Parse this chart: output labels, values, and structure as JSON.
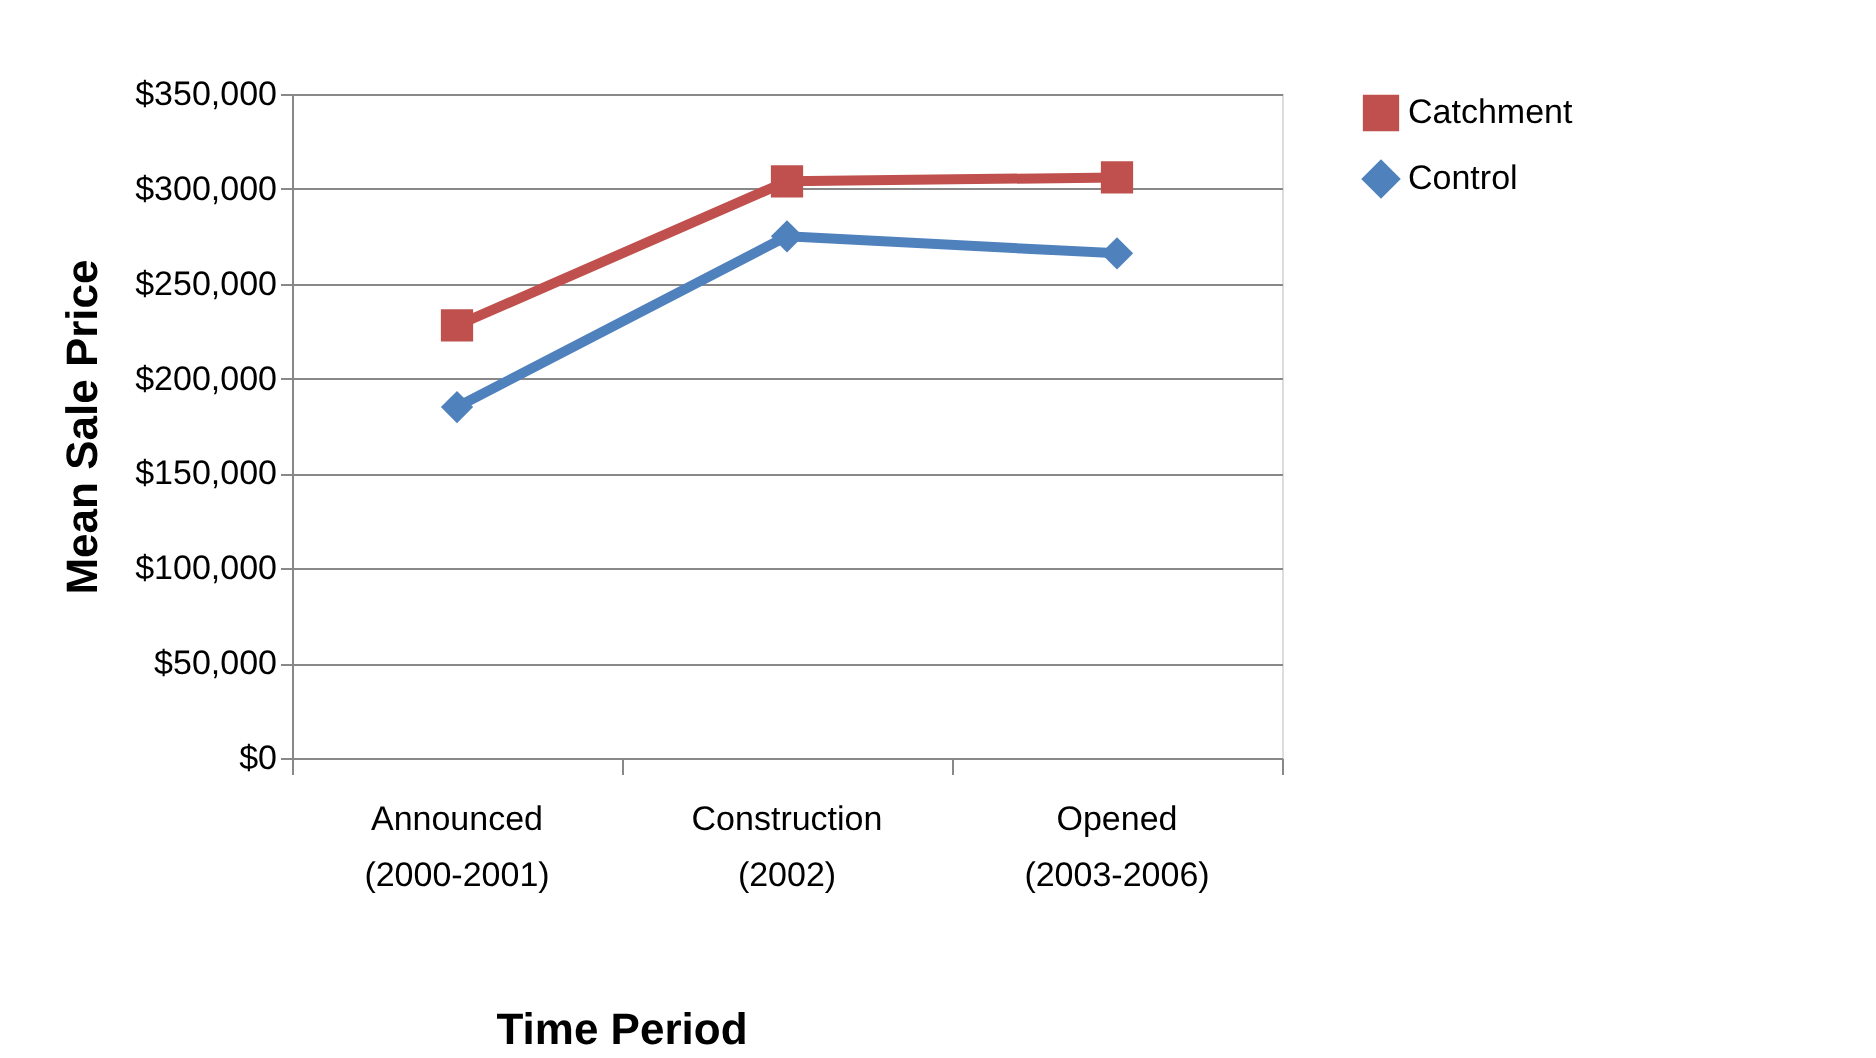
{
  "chart_data": {
    "type": "line",
    "xlabel": "Time Period",
    "ylabel": "Mean Sale Price",
    "categories": [
      "Announced (2000-2001)",
      "Construction (2002)",
      "Opened (2003-2006)"
    ],
    "series": [
      {
        "name": "Catchment",
        "color": "#c0504d",
        "marker": "square",
        "values": [
          228000,
          304000,
          306000
        ]
      },
      {
        "name": "Control",
        "color": "#4f81bd",
        "marker": "diamond",
        "values": [
          185000,
          275000,
          266000
        ]
      }
    ],
    "ylim": [
      0,
      350000
    ],
    "yticks": [
      {
        "value": 0,
        "label": "$0"
      },
      {
        "value": 50000,
        "label": "$50,000"
      },
      {
        "value": 100000,
        "label": "$100,000"
      },
      {
        "value": 150000,
        "label": "$150,000"
      },
      {
        "value": 200000,
        "label": "$200,000"
      },
      {
        "value": 250000,
        "label": "$250,000"
      },
      {
        "value": 300000,
        "label": "$300,000"
      },
      {
        "value": 350000,
        "label": "$350,000"
      }
    ],
    "grid": "y",
    "legend": "right"
  }
}
